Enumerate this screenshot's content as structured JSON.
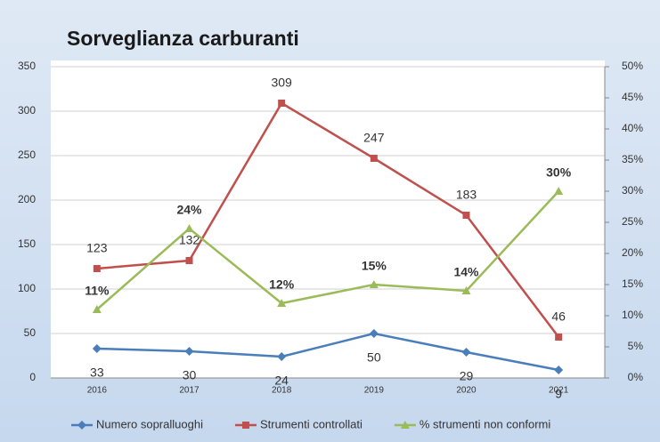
{
  "chart_data": {
    "type": "line",
    "title": "Sorveglianza carburanti",
    "categories": [
      "2016",
      "2017",
      "2018",
      "2019",
      "2020",
      "2021"
    ],
    "series": [
      {
        "name": "Numero sopralluoghi",
        "color": "#4a7ebb",
        "marker": "diamond",
        "values": [
          33,
          30,
          24,
          50,
          29,
          9
        ]
      },
      {
        "name": "Strumenti controllati",
        "color": "#c0504d",
        "marker": "square",
        "values": [
          123,
          132,
          309,
          247,
          183,
          46
        ]
      },
      {
        "name": "% strumenti non conformi",
        "color": "#9bbb59",
        "marker": "triangle",
        "axis": "y2",
        "values": [
          11,
          24,
          12,
          15,
          14,
          30
        ],
        "value_labels": [
          "11%",
          "24%",
          "12%",
          "15%",
          "14%",
          "30%"
        ]
      }
    ],
    "ylim": [
      0,
      350
    ],
    "yticks": [
      0,
      50,
      100,
      150,
      200,
      250,
      300,
      350
    ],
    "y2lim": [
      0,
      50
    ],
    "y2ticks": [
      {
        "value": 0,
        "label": "0%"
      },
      {
        "value": 5,
        "label": "5%"
      },
      {
        "value": 10,
        "label": "10%"
      },
      {
        "value": 15,
        "label": "15%"
      },
      {
        "value": 20,
        "label": "20%"
      },
      {
        "value": 25,
        "label": "25%"
      },
      {
        "value": 30,
        "label": "30%"
      },
      {
        "value": 35,
        "label": "35%"
      },
      {
        "value": 40,
        "label": "40%"
      },
      {
        "value": 45,
        "label": "45%"
      },
      {
        "value": 50,
        "label": "50%"
      }
    ],
    "grid": true,
    "legend": "bottom"
  }
}
